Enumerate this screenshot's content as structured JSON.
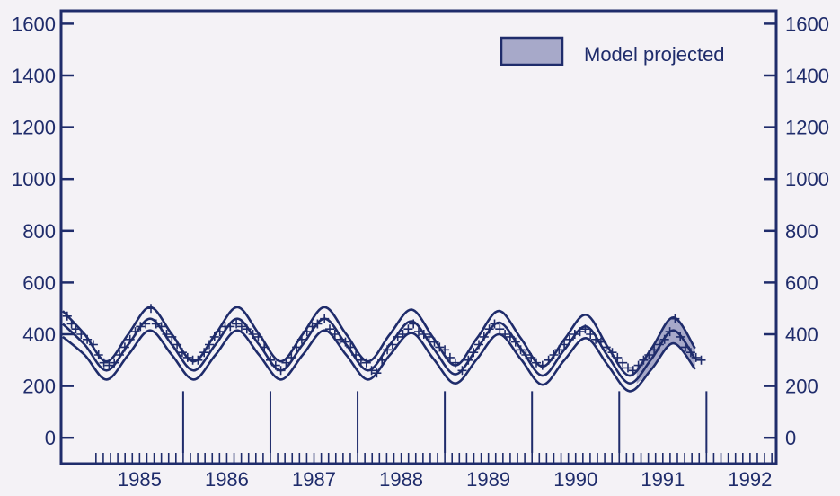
{
  "chart_data": {
    "type": "line",
    "title": "",
    "xlabel": "",
    "ylabel": "",
    "xlim": [
      1984.6,
      1992.8
    ],
    "ylim": [
      -100,
      1650
    ],
    "y_ticks": [
      0,
      200,
      400,
      600,
      800,
      1000,
      1200,
      1400,
      1600
    ],
    "y_tick_labels": [
      "0",
      "200",
      "400",
      "600",
      "800",
      "1000",
      "1200",
      "1400",
      "1600"
    ],
    "x_tick_labels": [
      "1985",
      "1986",
      "1987",
      "1988",
      "1989",
      "1990",
      "1991",
      "1992"
    ],
    "year_markers": [
      1986,
      1987,
      1988,
      1989,
      1990,
      1991,
      1992
    ],
    "shade_start": 1991.2,
    "shade_end": 1992.05,
    "legend": {
      "label": "Model projected",
      "position": "top-right"
    },
    "grid": false,
    "series": [
      {
        "values": [
          [
            1984.62,
            490
          ],
          [
            1984.87,
            400
          ],
          [
            1985.12,
            295
          ],
          [
            1985.37,
            400
          ],
          [
            1985.62,
            505
          ],
          [
            1985.87,
            400
          ],
          [
            1986.12,
            295
          ],
          [
            1986.37,
            400
          ],
          [
            1986.62,
            505
          ],
          [
            1986.87,
            400
          ],
          [
            1987.12,
            295
          ],
          [
            1987.37,
            400
          ],
          [
            1987.62,
            505
          ],
          [
            1987.87,
            400
          ],
          [
            1988.12,
            295
          ],
          [
            1988.37,
            400
          ],
          [
            1988.62,
            495
          ],
          [
            1988.87,
            385
          ],
          [
            1989.12,
            280
          ],
          [
            1989.37,
            385
          ],
          [
            1989.62,
            490
          ],
          [
            1989.87,
            385
          ],
          [
            1990.12,
            275
          ],
          [
            1990.37,
            380
          ],
          [
            1990.62,
            475
          ],
          [
            1990.87,
            350
          ],
          [
            1991.12,
            240
          ],
          [
            1991.37,
            345
          ],
          [
            1991.62,
            465
          ],
          [
            1991.87,
            345
          ]
        ]
      },
      {
        "values": [
          [
            1984.62,
            440
          ],
          [
            1984.87,
            360
          ],
          [
            1985.12,
            260
          ],
          [
            1985.37,
            360
          ],
          [
            1985.62,
            460
          ],
          [
            1985.87,
            360
          ],
          [
            1986.12,
            260
          ],
          [
            1986.37,
            360
          ],
          [
            1986.62,
            460
          ],
          [
            1986.87,
            360
          ],
          [
            1987.12,
            260
          ],
          [
            1987.37,
            360
          ],
          [
            1987.62,
            460
          ],
          [
            1987.87,
            360
          ],
          [
            1988.12,
            260
          ],
          [
            1988.37,
            360
          ],
          [
            1988.62,
            450
          ],
          [
            1988.87,
            345
          ],
          [
            1989.12,
            245
          ],
          [
            1989.37,
            345
          ],
          [
            1989.62,
            445
          ],
          [
            1989.87,
            345
          ],
          [
            1990.12,
            240
          ],
          [
            1990.37,
            340
          ],
          [
            1990.62,
            430
          ],
          [
            1990.87,
            315
          ],
          [
            1991.12,
            210
          ],
          [
            1991.37,
            305
          ],
          [
            1991.62,
            415
          ],
          [
            1991.87,
            305
          ]
        ]
      },
      {
        "values": [
          [
            1984.62,
            390
          ],
          [
            1984.87,
            320
          ],
          [
            1985.12,
            225
          ],
          [
            1985.37,
            320
          ],
          [
            1985.62,
            415
          ],
          [
            1985.87,
            320
          ],
          [
            1986.12,
            225
          ],
          [
            1986.37,
            320
          ],
          [
            1986.62,
            415
          ],
          [
            1986.87,
            320
          ],
          [
            1987.12,
            225
          ],
          [
            1987.37,
            320
          ],
          [
            1987.62,
            415
          ],
          [
            1987.87,
            320
          ],
          [
            1988.12,
            225
          ],
          [
            1988.37,
            320
          ],
          [
            1988.62,
            405
          ],
          [
            1988.87,
            305
          ],
          [
            1989.12,
            210
          ],
          [
            1989.37,
            305
          ],
          [
            1989.62,
            400
          ],
          [
            1989.87,
            305
          ],
          [
            1990.12,
            205
          ],
          [
            1990.37,
            300
          ],
          [
            1990.62,
            385
          ],
          [
            1990.87,
            280
          ],
          [
            1991.12,
            180
          ],
          [
            1991.37,
            265
          ],
          [
            1991.62,
            365
          ],
          [
            1991.87,
            265
          ]
        ]
      }
    ],
    "points": [
      [
        1984.67,
        470
      ],
      [
        1984.72,
        440
      ],
      [
        1984.77,
        420
      ],
      [
        1984.83,
        400
      ],
      [
        1984.9,
        380
      ],
      [
        1984.97,
        360
      ],
      [
        1985.03,
        320
      ],
      [
        1985.09,
        290
      ],
      [
        1985.15,
        280
      ],
      [
        1985.21,
        290
      ],
      [
        1985.27,
        320
      ],
      [
        1985.33,
        350
      ],
      [
        1985.39,
        380
      ],
      [
        1985.45,
        410
      ],
      [
        1985.51,
        430
      ],
      [
        1985.57,
        440
      ],
      [
        1985.63,
        500
      ],
      [
        1985.69,
        440
      ],
      [
        1985.75,
        430
      ],
      [
        1985.81,
        400
      ],
      [
        1985.87,
        390
      ],
      [
        1985.93,
        360
      ],
      [
        1985.99,
        330
      ],
      [
        1986.05,
        310
      ],
      [
        1986.11,
        300
      ],
      [
        1986.17,
        300
      ],
      [
        1986.24,
        330
      ],
      [
        1986.3,
        360
      ],
      [
        1986.36,
        390
      ],
      [
        1986.42,
        410
      ],
      [
        1986.48,
        430
      ],
      [
        1986.54,
        430
      ],
      [
        1986.61,
        440
      ],
      [
        1986.67,
        430
      ],
      [
        1986.73,
        420
      ],
      [
        1986.8,
        400
      ],
      [
        1986.86,
        390
      ],
      [
        1986.93,
        350
      ],
      [
        1987.0,
        300
      ],
      [
        1987.06,
        280
      ],
      [
        1987.12,
        260
      ],
      [
        1987.18,
        290
      ],
      [
        1987.24,
        310
      ],
      [
        1987.3,
        350
      ],
      [
        1987.36,
        380
      ],
      [
        1987.42,
        410
      ],
      [
        1987.48,
        430
      ],
      [
        1987.54,
        440
      ],
      [
        1987.62,
        460
      ],
      [
        1987.68,
        420
      ],
      [
        1987.74,
        400
      ],
      [
        1987.8,
        380
      ],
      [
        1987.86,
        370
      ],
      [
        1987.92,
        350
      ],
      [
        1987.98,
        320
      ],
      [
        1988.04,
        300
      ],
      [
        1988.1,
        290
      ],
      [
        1988.16,
        260
      ],
      [
        1988.22,
        250
      ],
      [
        1988.28,
        300
      ],
      [
        1988.34,
        340
      ],
      [
        1988.4,
        360
      ],
      [
        1988.46,
        390
      ],
      [
        1988.52,
        400
      ],
      [
        1988.58,
        420
      ],
      [
        1988.64,
        440
      ],
      [
        1988.7,
        410
      ],
      [
        1988.76,
        400
      ],
      [
        1988.82,
        390
      ],
      [
        1988.88,
        370
      ],
      [
        1988.94,
        350
      ],
      [
        1989.0,
        340
      ],
      [
        1989.06,
        310
      ],
      [
        1989.12,
        290
      ],
      [
        1989.2,
        260
      ],
      [
        1989.27,
        300
      ],
      [
        1989.33,
        330
      ],
      [
        1989.39,
        360
      ],
      [
        1989.45,
        390
      ],
      [
        1989.51,
        420
      ],
      [
        1989.57,
        440
      ],
      [
        1989.63,
        420
      ],
      [
        1989.69,
        400
      ],
      [
        1989.75,
        390
      ],
      [
        1989.81,
        370
      ],
      [
        1989.87,
        340
      ],
      [
        1989.93,
        320
      ],
      [
        1989.99,
        310
      ],
      [
        1990.05,
        290
      ],
      [
        1990.12,
        280
      ],
      [
        1990.19,
        300
      ],
      [
        1990.25,
        320
      ],
      [
        1990.31,
        340
      ],
      [
        1990.37,
        360
      ],
      [
        1990.43,
        380
      ],
      [
        1990.49,
        400
      ],
      [
        1990.55,
        410
      ],
      [
        1990.61,
        420
      ],
      [
        1990.67,
        400
      ],
      [
        1990.73,
        380
      ],
      [
        1990.79,
        370
      ],
      [
        1990.85,
        350
      ],
      [
        1990.92,
        330
      ],
      [
        1990.98,
        310
      ],
      [
        1991.04,
        290
      ],
      [
        1991.1,
        270
      ],
      [
        1991.16,
        260
      ],
      [
        1991.22,
        280
      ],
      [
        1991.28,
        300
      ],
      [
        1991.34,
        320
      ],
      [
        1991.4,
        340
      ],
      [
        1991.46,
        360
      ],
      [
        1991.52,
        380
      ],
      [
        1991.58,
        410
      ],
      [
        1991.64,
        460
      ],
      [
        1991.7,
        390
      ],
      [
        1991.76,
        350
      ],
      [
        1991.82,
        330
      ],
      [
        1991.88,
        310
      ],
      [
        1991.94,
        300
      ]
    ],
    "colors": {
      "axis": "#1f2c6b",
      "line": "#1f2c6b",
      "shade": "#a7a9c9",
      "background": "#f4f2f6"
    }
  }
}
